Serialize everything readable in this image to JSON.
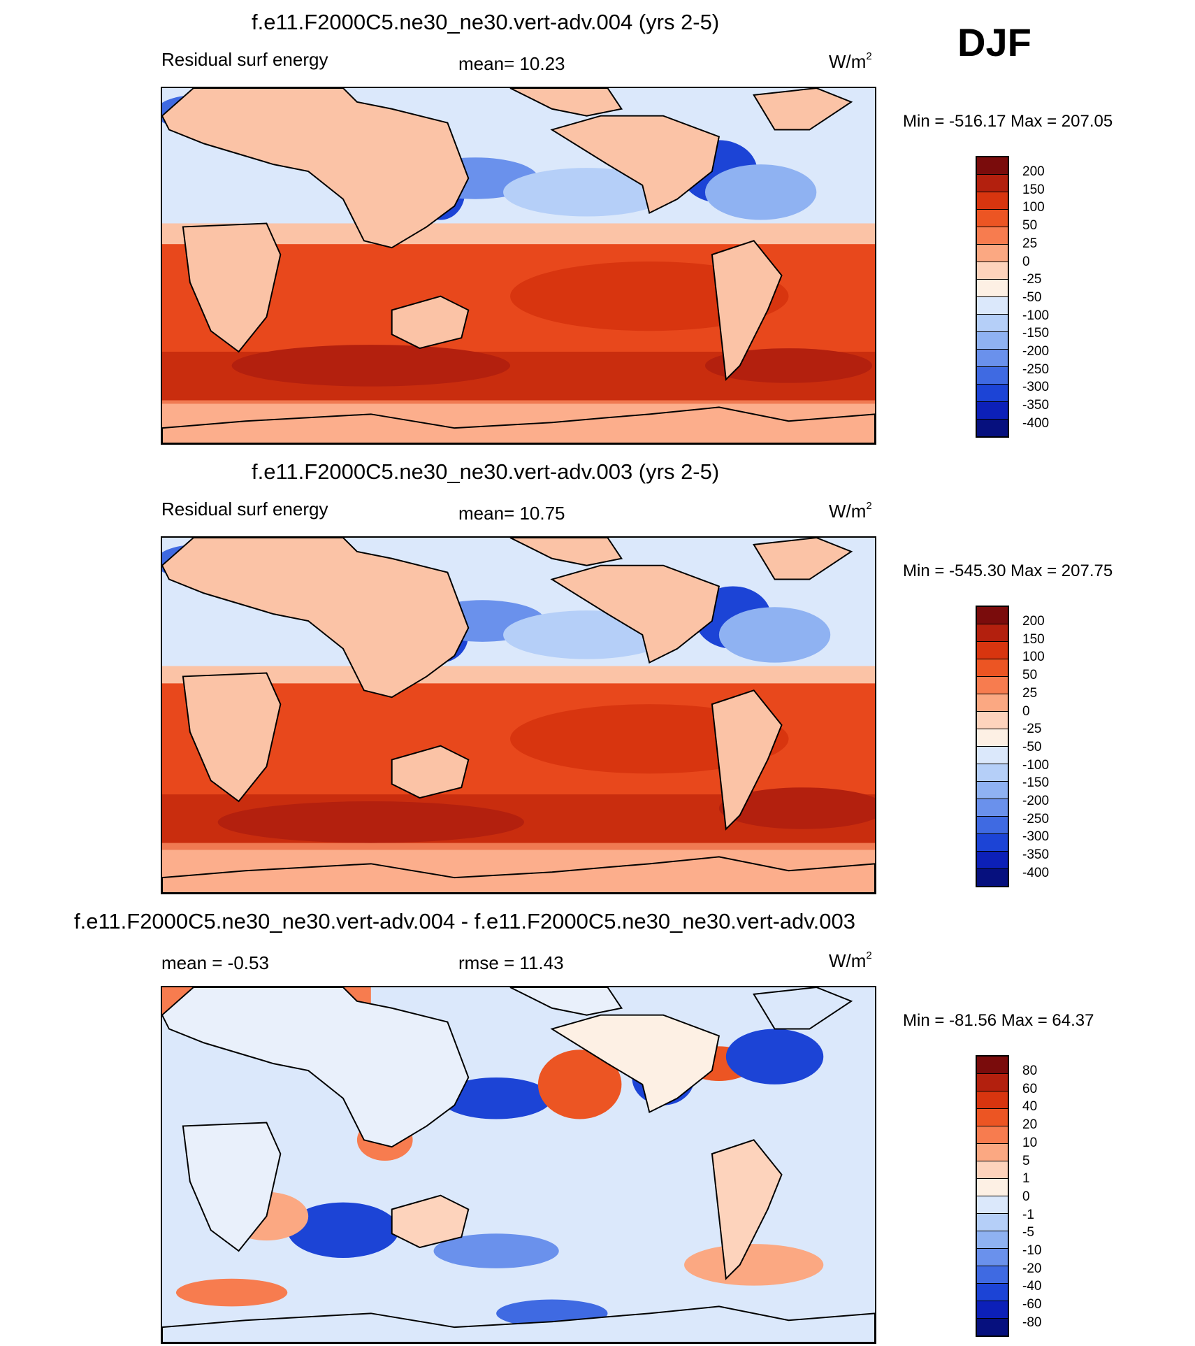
{
  "season": "DJF",
  "panels": [
    {
      "title": "f.e11.F2000C5.ne30_ne30.vert-adv.004 (yrs 2-5)",
      "left_label": "Residual surf energy",
      "center_label": "mean=  10.23",
      "unit": "W/m",
      "unit_exp": "2",
      "minmax": "Min = -516.17 Max = 207.05",
      "levels": [
        "200",
        "150",
        "100",
        "50",
        "25",
        "0",
        "-25",
        "-50",
        "-100",
        "-150",
        "-200",
        "-250",
        "-300",
        "-350",
        "-400"
      ]
    },
    {
      "title": "f.e11.F2000C5.ne30_ne30.vert-adv.003 (yrs 2-5)",
      "left_label": "Residual surf energy",
      "center_label": "mean=  10.75",
      "unit": "W/m",
      "unit_exp": "2",
      "minmax": "Min = -545.30 Max = 207.75",
      "levels": [
        "200",
        "150",
        "100",
        "50",
        "25",
        "0",
        "-25",
        "-50",
        "-100",
        "-150",
        "-200",
        "-250",
        "-300",
        "-350",
        "-400"
      ]
    },
    {
      "title": "f.e11.F2000C5.ne30_ne30.vert-adv.004 - f.e11.F2000C5.ne30_ne30.vert-adv.003",
      "left_label": "mean =  -0.53",
      "center_label": "rmse =  11.43",
      "unit": "W/m",
      "unit_exp": "2",
      "minmax": "Min = -81.56 Max =  64.37",
      "levels": [
        "80",
        "60",
        "40",
        "20",
        "10",
        "5",
        "1",
        "0",
        "-1",
        "-5",
        "-10",
        "-20",
        "-40",
        "-60",
        "-80"
      ]
    }
  ],
  "colors": {
    "colorbar_top_to_bottom": [
      "#7a0c0c",
      "#b3200e",
      "#d8350f",
      "#ec5523",
      "#f77c4f",
      "#fba882",
      "#fdd3bc",
      "#fdf0e4",
      "#dbe8fb",
      "#b5cff8",
      "#8fb2f2",
      "#6a91ec",
      "#3f6ae2",
      "#1c44d6",
      "#0c20b8",
      "#06107e"
    ],
    "land": "#fbc3a6",
    "ice": "#fcae8c",
    "ocean_warm": "#e8481c",
    "ocean_hot": "#c92d0e"
  }
}
